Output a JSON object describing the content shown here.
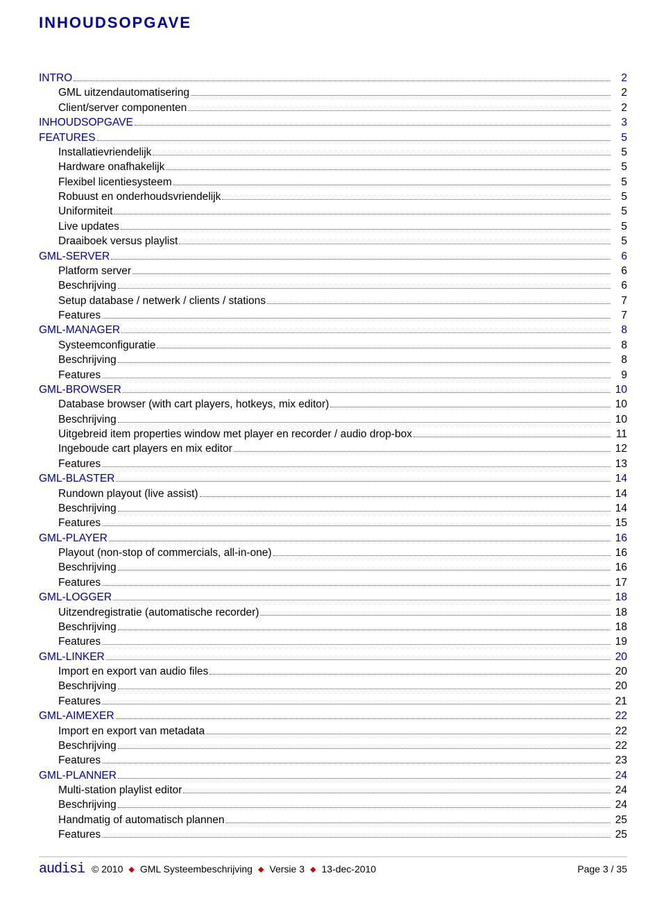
{
  "title": "INHOUDSOPGAVE",
  "colors": {
    "link": "#000099",
    "text": "#000000",
    "diamond": "#cc0000"
  },
  "toc": [
    {
      "label": "INTRO",
      "page": "2",
      "level": 0,
      "color": "blue"
    },
    {
      "label": "GML uitzendautomatisering",
      "page": "2",
      "level": 1,
      "color": "black"
    },
    {
      "label": "Client/server componenten",
      "page": "2",
      "level": 1,
      "color": "black"
    },
    {
      "label": "INHOUDSOPGAVE",
      "page": "3",
      "level": 0,
      "color": "blue"
    },
    {
      "label": "FEATURES",
      "page": "5",
      "level": 0,
      "color": "blue"
    },
    {
      "label": "Installatievriendelijk",
      "page": "5",
      "level": 1,
      "color": "black"
    },
    {
      "label": "Hardware onafhakelijk",
      "page": "5",
      "level": 1,
      "color": "black"
    },
    {
      "label": "Flexibel licentiesysteem",
      "page": "5",
      "level": 1,
      "color": "black"
    },
    {
      "label": "Robuust en onderhoudsvriendelijk",
      "page": "5",
      "level": 1,
      "color": "black"
    },
    {
      "label": "Uniformiteit",
      "page": "5",
      "level": 1,
      "color": "black"
    },
    {
      "label": "Live updates",
      "page": "5",
      "level": 1,
      "color": "black"
    },
    {
      "label": "Draaiboek versus playlist",
      "page": "5",
      "level": 1,
      "color": "black"
    },
    {
      "label": "GML-SERVER",
      "page": "6",
      "level": 0,
      "color": "blue"
    },
    {
      "label": "Platform server",
      "page": "6",
      "level": 1,
      "color": "black"
    },
    {
      "label": "Beschrijving",
      "page": "6",
      "level": 1,
      "color": "black"
    },
    {
      "label": "Setup database / netwerk / clients / stations",
      "page": "7",
      "level": 1,
      "color": "black"
    },
    {
      "label": "Features",
      "page": "7",
      "level": 1,
      "color": "black"
    },
    {
      "label": "GML-MANAGER",
      "page": "8",
      "level": 0,
      "color": "blue"
    },
    {
      "label": "Systeemconfiguratie",
      "page": "8",
      "level": 1,
      "color": "black"
    },
    {
      "label": "Beschrijving",
      "page": "8",
      "level": 1,
      "color": "black"
    },
    {
      "label": "Features",
      "page": "9",
      "level": 1,
      "color": "black"
    },
    {
      "label": "GML-BROWSER",
      "page": "10",
      "level": 0,
      "color": "blue"
    },
    {
      "label": "Database browser (with cart players, hotkeys, mix editor)",
      "page": "10",
      "level": 1,
      "color": "black"
    },
    {
      "label": "Beschrijving",
      "page": "10",
      "level": 1,
      "color": "black"
    },
    {
      "label": "Uitgebreid item properties window met player en recorder / audio drop-box",
      "page": "11",
      "level": 1,
      "color": "black"
    },
    {
      "label": "Ingeboude cart players en mix editor",
      "page": "12",
      "level": 1,
      "color": "black"
    },
    {
      "label": "Features",
      "page": "13",
      "level": 1,
      "color": "black"
    },
    {
      "label": "GML-BLASTER",
      "page": "14",
      "level": 0,
      "color": "blue"
    },
    {
      "label": "Rundown playout (live assist)",
      "page": "14",
      "level": 1,
      "color": "black"
    },
    {
      "label": "Beschrijving",
      "page": "14",
      "level": 1,
      "color": "black"
    },
    {
      "label": "Features",
      "page": "15",
      "level": 1,
      "color": "black"
    },
    {
      "label": "GML-PLAYER",
      "page": "16",
      "level": 0,
      "color": "blue"
    },
    {
      "label": "Playout (non-stop of commercials, all-in-one)",
      "page": "16",
      "level": 1,
      "color": "black"
    },
    {
      "label": "Beschrijving",
      "page": "16",
      "level": 1,
      "color": "black"
    },
    {
      "label": "Features",
      "page": "17",
      "level": 1,
      "color": "black"
    },
    {
      "label": "GML-LOGGER",
      "page": "18",
      "level": 0,
      "color": "blue"
    },
    {
      "label": "Uitzendregistratie (automatische recorder)",
      "page": "18",
      "level": 1,
      "color": "black"
    },
    {
      "label": "Beschrijving",
      "page": "18",
      "level": 1,
      "color": "black"
    },
    {
      "label": "Features",
      "page": "19",
      "level": 1,
      "color": "black"
    },
    {
      "label": "GML-LINKER",
      "page": "20",
      "level": 0,
      "color": "blue"
    },
    {
      "label": "Import en export van audio files",
      "page": "20",
      "level": 1,
      "color": "black"
    },
    {
      "label": "Beschrijving",
      "page": "20",
      "level": 1,
      "color": "black"
    },
    {
      "label": "Features",
      "page": "21",
      "level": 1,
      "color": "black"
    },
    {
      "label": "GML-AIMEXER",
      "page": "22",
      "level": 0,
      "color": "blue"
    },
    {
      "label": "Import en export van metadata",
      "page": "22",
      "level": 1,
      "color": "black"
    },
    {
      "label": "Beschrijving",
      "page": "22",
      "level": 1,
      "color": "black"
    },
    {
      "label": "Features",
      "page": "23",
      "level": 1,
      "color": "black"
    },
    {
      "label": "GML-PLANNER",
      "page": "24",
      "level": 0,
      "color": "blue"
    },
    {
      "label": "Multi-station playlist editor",
      "page": "24",
      "level": 1,
      "color": "black"
    },
    {
      "label": "Beschrijving",
      "page": "24",
      "level": 1,
      "color": "black"
    },
    {
      "label": "Handmatig of automatisch plannen",
      "page": "25",
      "level": 1,
      "color": "black"
    },
    {
      "label": "Features",
      "page": "25",
      "level": 1,
      "color": "black"
    }
  ],
  "footer": {
    "logo": "audisi",
    "copyright": "© 2010",
    "doc": "GML Systeembeschrijving",
    "version": "Versie 3",
    "date": "13-dec-2010",
    "page": "Page 3 / 35"
  }
}
